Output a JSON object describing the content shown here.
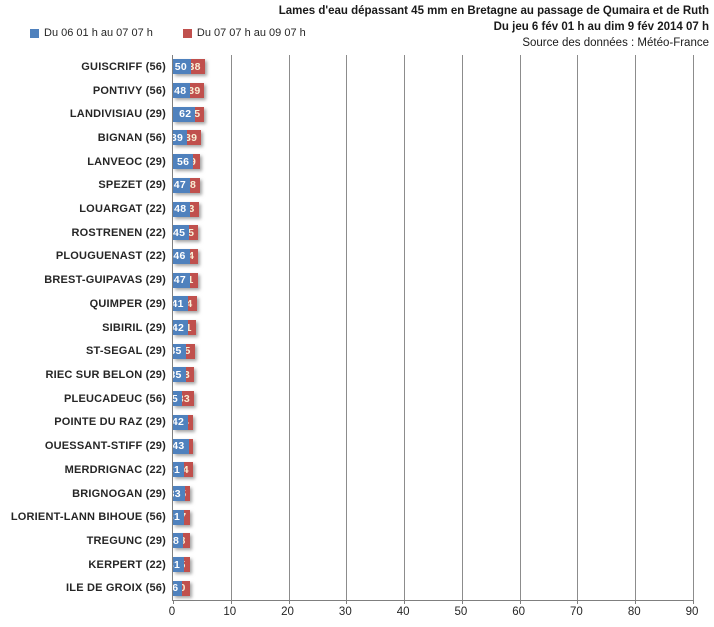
{
  "title": {
    "line1": "Lames d'eau dépassant 45 mm en Bretagne au passage de Qumaira et de Ruth",
    "line2": "Du jeu 6 fév 01 h au dim 9 fév 2014 07 h",
    "line3": "Source des données : Météo-France"
  },
  "legend": [
    {
      "label": "Du 06 01 h au 07 07 h",
      "color": "#4F81BD"
    },
    {
      "label": "Du 07 07 h au 09 07 h",
      "color": "#C0504D"
    }
  ],
  "chart_data": {
    "type": "bar",
    "orientation": "horizontal",
    "stacked": true,
    "title": "Lames d'eau dépassant 45 mm en Bretagne au passage de Qumaira et de Ruth",
    "subtitle": "Du jeu 6 fév 01 h au dim 9 fév 2014 07 h",
    "source": "Source des données : Météo-France",
    "categories": [
      "GUISCRIFF (56)",
      "PONTIVY (56)",
      "LANDIVISIAU (29)",
      "BIGNAN (56)",
      "LANVEOC (29)",
      "SPEZET (29)",
      "LOUARGAT (22)",
      "ROSTRENEN (22)",
      "PLOUGUENAST (22)",
      "BREST-GUIPAVAS (29)",
      "QUIMPER (29)",
      "SIBIRIL (29)",
      "ST-SEGAL (29)",
      "RIEC SUR BELON (29)",
      "PLEUCADEUC (56)",
      "POINTE DU RAZ (29)",
      "OUESSANT-STIFF (29)",
      "MERDRIGNAC (22)",
      "BRIGNOGAN (29)",
      "LORIENT-LANN BIHOUE (56)",
      "TREGUNC (29)",
      "KERPERT (22)",
      "ILE DE GROIX (56)"
    ],
    "series": [
      {
        "name": "Du 06 01 h au 07 07 h",
        "color": "#4F81BD",
        "value_label_color": "#FFFFFF",
        "values": [
          50,
          48,
          62,
          39,
          56,
          47,
          48,
          45,
          46,
          47,
          41,
          42,
          35,
          35,
          25,
          42,
          43,
          31,
          33,
          31,
          28,
          31,
          26
        ]
      },
      {
        "name": "Du 07 07 h au 09 07 h",
        "color": "#C0504D",
        "value_label_color": "#F8EFD4",
        "values": [
          38,
          39,
          25,
          39,
          19,
          28,
          23,
          25,
          24,
          21,
          24,
          21,
          25,
          23,
          33,
          14,
          13,
          24,
          15,
          17,
          18,
          15,
          20
        ]
      }
    ],
    "xlabel": "",
    "ylabel": "",
    "xlim": [
      0,
      90
    ],
    "xticks": [
      0,
      10,
      20,
      30,
      40,
      50,
      60,
      70,
      80,
      90
    ],
    "grid": "vertical-major",
    "legend_position": "top-left"
  }
}
